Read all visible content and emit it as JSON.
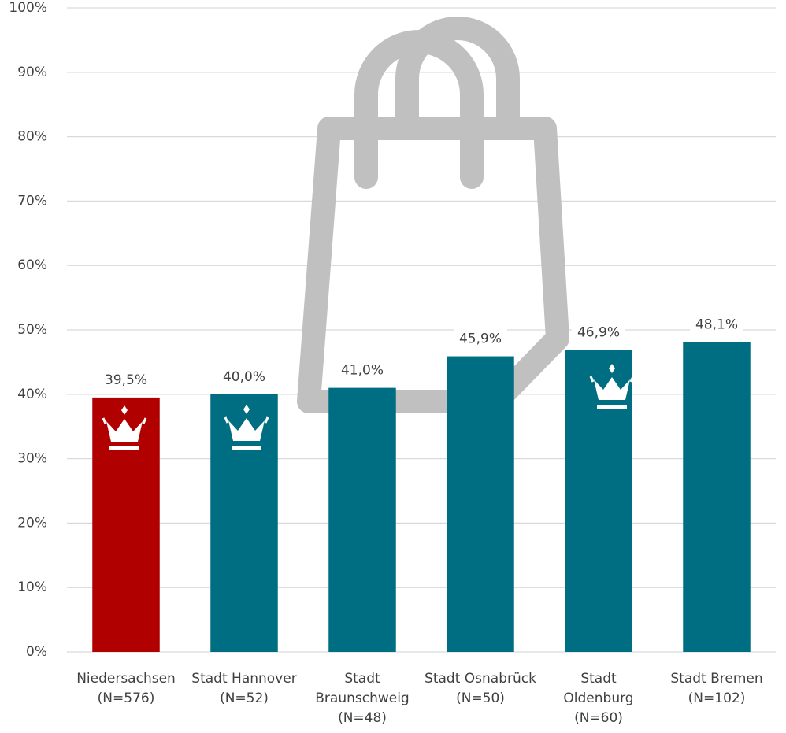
{
  "chart_data": {
    "type": "bar",
    "categories": [
      [
        "Niedersachsen",
        "(N=576)"
      ],
      [
        "Stadt Hannover",
        "(N=52)"
      ],
      [
        "Stadt",
        "Braunschweig",
        "(N=48)"
      ],
      [
        "Stadt Osnabrück",
        "(N=50)"
      ],
      [
        "Stadt",
        "Oldenburg",
        "(N=60)"
      ],
      [
        "Stadt Bremen",
        "(N=102)"
      ]
    ],
    "values": [
      39.5,
      40.0,
      41.0,
      45.9,
      46.9,
      48.1
    ],
    "value_labels": [
      "39,5%",
      "40,0%",
      "41,0%",
      "45,9%",
      "46,9%",
      "48,1%"
    ],
    "colors": [
      "#b00000",
      "#006e82",
      "#006e82",
      "#006e82",
      "#006e82",
      "#006e82"
    ],
    "ylim": [
      0,
      100
    ],
    "yticks": [
      {
        "value": 0,
        "label": "0%"
      },
      {
        "value": 10,
        "label": "10%"
      },
      {
        "value": 20,
        "label": "20%"
      },
      {
        "value": 30,
        "label": "30%"
      },
      {
        "value": 40,
        "label": "40%"
      },
      {
        "value": 50,
        "label": "50%"
      },
      {
        "value": 60,
        "label": "60%"
      },
      {
        "value": 70,
        "label": "70%"
      },
      {
        "value": 80,
        "label": "80%"
      },
      {
        "value": 90,
        "label": "90%"
      },
      {
        "value": 100,
        "label": "100%"
      }
    ],
    "grid": true
  }
}
